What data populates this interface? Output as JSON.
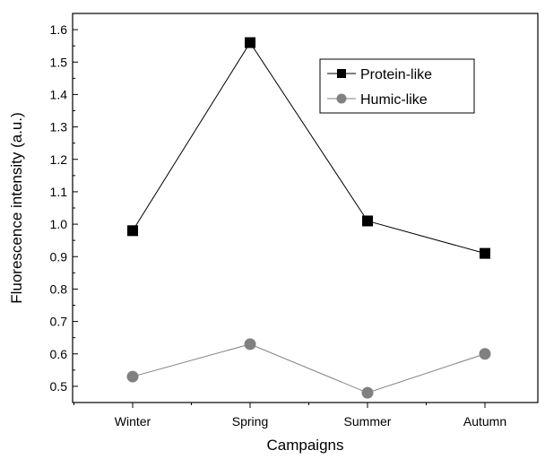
{
  "chart_data": {
    "type": "line",
    "xlabel": "Campaigns",
    "ylabel": "Fluorescence intensity (a.u.)",
    "categories": [
      "Winter",
      "Spring",
      "Summer",
      "Autumn"
    ],
    "ylim": [
      0.45,
      1.65
    ],
    "yticks": [
      0.5,
      0.6,
      0.7,
      0.8,
      0.9,
      1.0,
      1.1,
      1.2,
      1.3,
      1.4,
      1.5,
      1.6
    ],
    "ytick_labels": [
      "0.5",
      "0.6",
      "0.7",
      "0.8",
      "0.9",
      "1.0",
      "1.1",
      "1.2",
      "1.3",
      "1.4",
      "1.5",
      "1.6"
    ],
    "grid": false,
    "legend_position": "top-right",
    "series": [
      {
        "name": "Protein-like",
        "values": [
          0.98,
          1.56,
          1.01,
          0.91
        ],
        "color": "#000000",
        "marker": "square"
      },
      {
        "name": "Humic-like",
        "values": [
          0.53,
          0.63,
          0.48,
          0.6
        ],
        "color": "#808080",
        "marker": "circle"
      }
    ]
  }
}
